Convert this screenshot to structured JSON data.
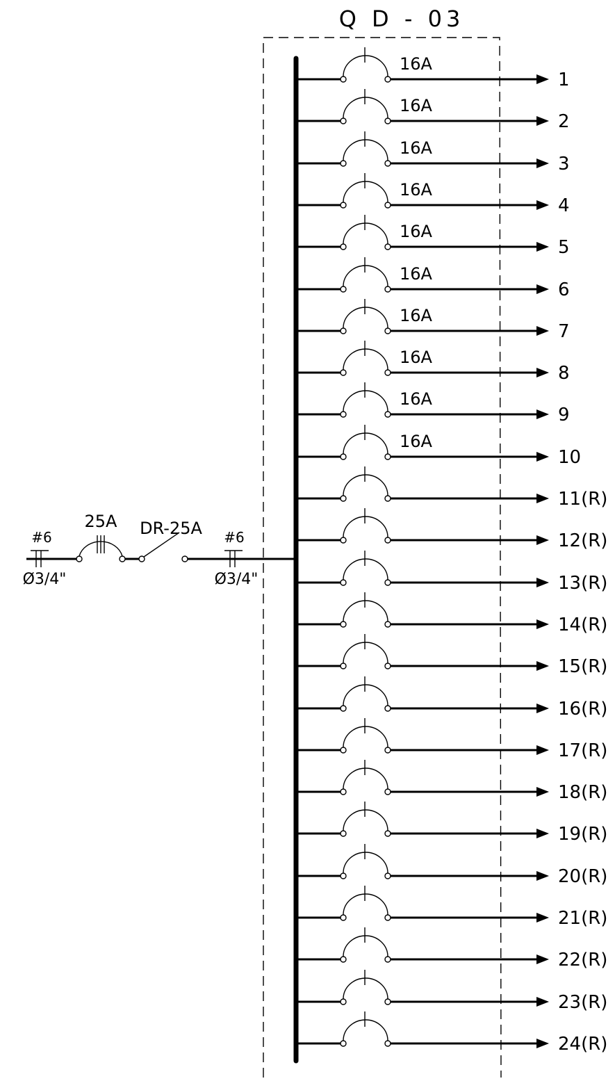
{
  "panel": {
    "title": "Q D - 03"
  },
  "feeder": {
    "left_wire_gauge": "#6",
    "left_conduit": "Ø3/4\"",
    "main_breaker_rating": "25A",
    "rcd_label": "DR-25A",
    "right_wire_gauge": "#6",
    "right_conduit": "Ø3/4\""
  },
  "circuits": [
    {
      "number": "1",
      "rating": "16A"
    },
    {
      "number": "2",
      "rating": "16A"
    },
    {
      "number": "3",
      "rating": "16A"
    },
    {
      "number": "4",
      "rating": "16A"
    },
    {
      "number": "5",
      "rating": "16A"
    },
    {
      "number": "6",
      "rating": "16A"
    },
    {
      "number": "7",
      "rating": "16A"
    },
    {
      "number": "8",
      "rating": "16A"
    },
    {
      "number": "9",
      "rating": "16A"
    },
    {
      "number": "10",
      "rating": "16A"
    },
    {
      "number": "11(R)",
      "rating": ""
    },
    {
      "number": "12(R)",
      "rating": ""
    },
    {
      "number": "13(R)",
      "rating": ""
    },
    {
      "number": "14(R)",
      "rating": ""
    },
    {
      "number": "15(R)",
      "rating": ""
    },
    {
      "number": "16(R)",
      "rating": ""
    },
    {
      "number": "17(R)",
      "rating": ""
    },
    {
      "number": "18(R)",
      "rating": ""
    },
    {
      "number": "19(R)",
      "rating": ""
    },
    {
      "number": "20(R)",
      "rating": ""
    },
    {
      "number": "21(R)",
      "rating": ""
    },
    {
      "number": "22(R)",
      "rating": ""
    },
    {
      "number": "23(R)",
      "rating": ""
    },
    {
      "number": "24(R)",
      "rating": ""
    }
  ]
}
